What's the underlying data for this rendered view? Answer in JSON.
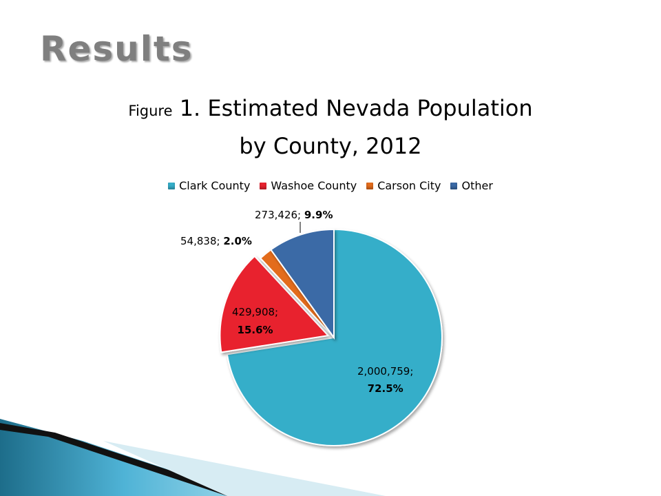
{
  "slide": {
    "title": "Results"
  },
  "chart_data": {
    "type": "pie",
    "title_prefix": "Figure",
    "title_line1": "1. Estimated Nevada Population",
    "title_line2": "by County, 2012",
    "categories": [
      "Clark County",
      "Washoe County",
      "Carson City",
      "Other"
    ],
    "values": [
      2000759,
      429908,
      54838,
      273426
    ],
    "value_labels": [
      "2,000,759;",
      "429,908;",
      "54,838;",
      "273,426;"
    ],
    "percent_labels": [
      "72.5%",
      "15.6%",
      "2.0%",
      "9.9%"
    ],
    "colors": [
      "#35aec9",
      "#e8222f",
      "#e36c1c",
      "#3b6aa6"
    ],
    "legend_position": "top",
    "exploded_slice": "Washoe County"
  }
}
